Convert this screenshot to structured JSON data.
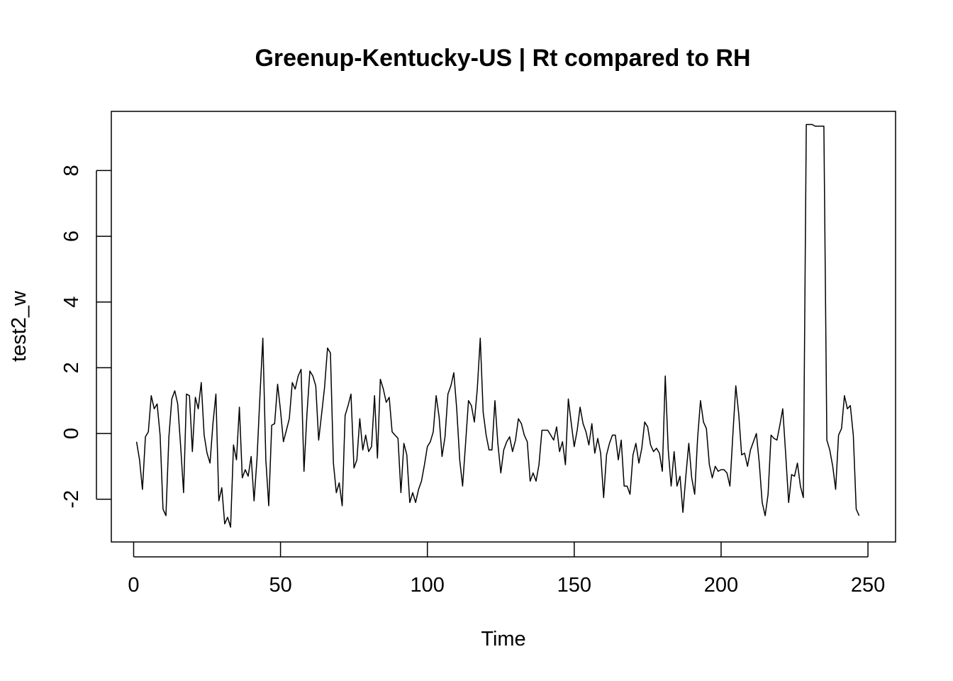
{
  "chart_data": {
    "type": "line",
    "title": "Greenup-Kentucky-US | Rt compared to RH",
    "xlabel": "Time",
    "ylabel": "test2_w",
    "xlim": [
      -7.6,
      259.4
    ],
    "ylim": [
      -3.3,
      9.8
    ],
    "x_ticks": [
      0,
      50,
      100,
      150,
      200,
      250
    ],
    "y_ticks": [
      -2,
      0,
      2,
      4,
      6,
      8
    ],
    "grid": false,
    "legend": "none",
    "series": [
      {
        "start_x": 1,
        "values": [
          -0.25,
          -0.8,
          -1.7,
          -0.1,
          0.05,
          1.15,
          0.75,
          0.9,
          -0.05,
          -2.3,
          -2.5,
          -0.1,
          1.05,
          1.3,
          0.9,
          -0.4,
          -1.8,
          1.2,
          1.15,
          -0.55,
          1.1,
          0.75,
          1.55,
          -0.05,
          -0.6,
          -0.9,
          0.3,
          1.2,
          -2.05,
          -1.65,
          -2.75,
          -2.55,
          -2.85,
          -0.35,
          -0.8,
          0.8,
          -1.35,
          -1.1,
          -1.3,
          -0.7,
          -2.05,
          -0.75,
          1.15,
          2.9,
          -0.8,
          -2.2,
          0.25,
          0.3,
          1.5,
          0.7,
          -0.25,
          0.1,
          0.45,
          1.55,
          1.35,
          1.75,
          1.95,
          -1.15,
          0.6,
          1.9,
          1.75,
          1.45,
          -0.2,
          0.6,
          1.4,
          2.6,
          2.45,
          -0.9,
          -1.8,
          -1.5,
          -2.2,
          0.55,
          0.85,
          1.2,
          -1.05,
          -0.8,
          0.45,
          -0.5,
          -0.05,
          -0.55,
          -0.4,
          1.15,
          -0.75,
          1.65,
          1.35,
          0.95,
          1.1,
          0.05,
          -0.05,
          -0.15,
          -1.8,
          -0.3,
          -0.65,
          -2.1,
          -1.8,
          -2.1,
          -1.7,
          -1.45,
          -0.95,
          -0.4,
          -0.25,
          0.05,
          1.15,
          0.5,
          -0.7,
          -0.1,
          1.2,
          1.45,
          1.85,
          0.75,
          -0.8,
          -1.6,
          -0.3,
          1.0,
          0.85,
          0.35,
          1.35,
          2.9,
          0.65,
          -0.05,
          -0.5,
          -0.5,
          1.0,
          -0.3,
          -1.2,
          -0.5,
          -0.25,
          -0.1,
          -0.55,
          -0.2,
          0.45,
          0.3,
          -0.05,
          -0.25,
          -1.45,
          -1.2,
          -1.45,
          -0.95,
          0.1,
          0.1,
          0.1,
          -0.05,
          -0.2,
          0.2,
          -0.55,
          -0.25,
          -0.95,
          1.05,
          0.3,
          -0.4,
          0.1,
          0.8,
          0.3,
          0.05,
          -0.35,
          0.3,
          -0.6,
          -0.15,
          -0.6,
          -1.95,
          -0.65,
          -0.3,
          -0.05,
          -0.05,
          -0.8,
          -0.2,
          -1.6,
          -1.6,
          -1.85,
          -0.65,
          -0.3,
          -0.9,
          -0.45,
          0.35,
          0.2,
          -0.35,
          -0.55,
          -0.45,
          -0.6,
          -1.15,
          1.75,
          -0.5,
          -1.6,
          -0.55,
          -1.6,
          -1.3,
          -2.4,
          -1.3,
          -0.3,
          -1.35,
          -1.85,
          -0.15,
          1.0,
          0.35,
          0.15,
          -0.95,
          -1.35,
          -1.0,
          -1.15,
          -1.1,
          -1.1,
          -1.2,
          -1.6,
          -0.05,
          1.45,
          0.6,
          -0.65,
          -0.6,
          -1.0,
          -0.5,
          -0.25,
          0.0,
          -0.9,
          -2.1,
          -2.5,
          -1.85,
          -0.05,
          -0.15,
          -0.2,
          0.25,
          0.75,
          -0.65,
          -2.1,
          -1.25,
          -1.3,
          -0.9,
          -1.6,
          -1.95,
          9.4,
          9.4,
          9.4,
          9.35,
          9.35,
          9.35,
          9.35,
          -0.2,
          -0.5,
          -1.0,
          -1.7,
          -0.05,
          0.15,
          1.15,
          0.75,
          0.85,
          -0.05,
          -2.3,
          -2.5
        ]
      }
    ]
  }
}
